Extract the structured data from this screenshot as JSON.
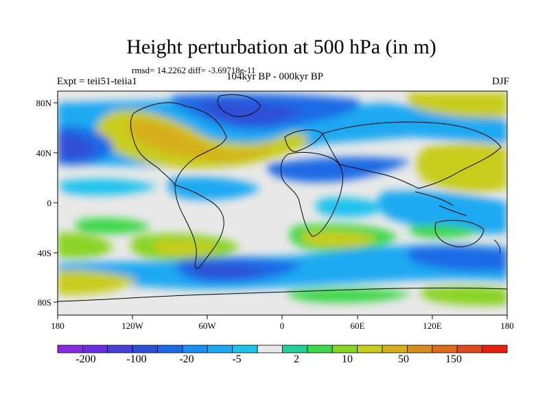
{
  "title": "Height perturbation at 500 hPa (in m)",
  "stats": "rmsd= 14.2262 diff= -3.69718e-11",
  "period": "104kyr BP - 000kyr BP",
  "experiment": "Expt = teii51-teiia1",
  "season": "DJF",
  "map": {
    "lon_ticks": [
      "180",
      "120W",
      "60W",
      "0",
      "60E",
      "120E",
      "180"
    ],
    "lat_ticks": [
      "80N",
      "40N",
      "0",
      "40S",
      "80S"
    ]
  },
  "colorbar": {
    "labels": [
      "-200",
      "-100",
      "-20",
      "-5",
      "2",
      "10",
      "50",
      "150"
    ],
    "colors": [
      "#8a2be2",
      "#6a2ee0",
      "#4a3fd8",
      "#2d4fd6",
      "#1e6ae6",
      "#1d8ff0",
      "#1ea9f2",
      "#1fc3ee",
      "#e8e8e8",
      "#27cf9c",
      "#3dd84a",
      "#8ad425",
      "#c8cd1e",
      "#d6b01f",
      "#d98d1f",
      "#dc6a1f",
      "#df4a1c",
      "#e8200e"
    ]
  }
}
